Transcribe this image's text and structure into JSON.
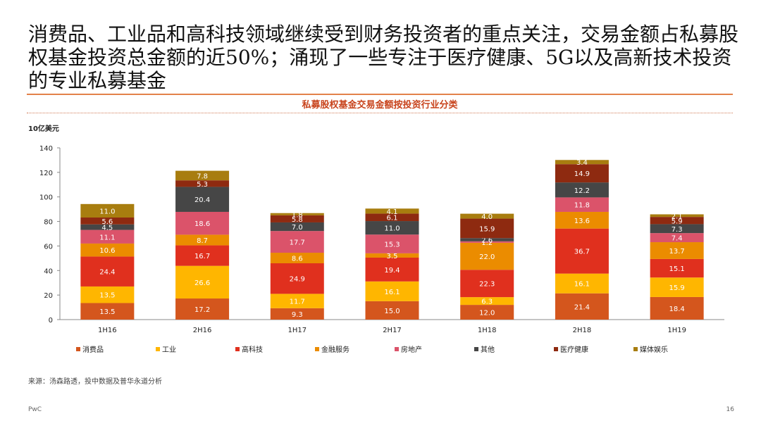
{
  "headline": "消费品、工业品和高科技领域继续受到财务投资者的重点关注，交易金额占私募股权基金投资总金额的近50%；涌现了一些专注于医疗健康、5G以及高新技术投资的专业私募基金",
  "source": "来源：汤森路透，投中数据及普华永道分析",
  "footer": {
    "brand": "PwC",
    "page": "16"
  },
  "chart_data": {
    "type": "bar",
    "stacked": true,
    "title": "私募股权基金交易金额按投资行业分类",
    "ylabel": "10亿美元",
    "ylim": [
      0,
      140
    ],
    "yticks": [
      0,
      20,
      40,
      60,
      80,
      100,
      120,
      140
    ],
    "grid": false,
    "legend_position": "bottom",
    "categories": [
      "1H16",
      "2H16",
      "1H17",
      "2H17",
      "1H18",
      "2H18",
      "1H19"
    ],
    "series": [
      {
        "name": "消费品",
        "color": "#d4561d",
        "values": [
          13.5,
          17.2,
          9.3,
          15.0,
          12.0,
          21.4,
          18.4
        ]
      },
      {
        "name": "工业",
        "color": "#ffb600",
        "values": [
          13.5,
          26.6,
          11.7,
          16.1,
          6.3,
          16.1,
          15.9
        ]
      },
      {
        "name": "高科技",
        "color": "#e0301e",
        "values": [
          24.4,
          16.7,
          24.9,
          19.4,
          22.3,
          36.7,
          15.1
        ]
      },
      {
        "name": "金融服务",
        "color": "#eb8c00",
        "values": [
          10.6,
          8.7,
          8.6,
          3.5,
          22.0,
          13.6,
          13.7
        ]
      },
      {
        "name": "房地产",
        "color": "#db536a",
        "values": [
          11.1,
          18.6,
          17.7,
          15.3,
          1.2,
          11.8,
          7.4
        ]
      },
      {
        "name": "其他",
        "color": "#464646",
        "values": [
          4.5,
          20.4,
          7.0,
          11.0,
          2.6,
          12.2,
          7.3
        ]
      },
      {
        "name": "医疗健康",
        "color": "#8e2a10",
        "values": [
          5.6,
          5.3,
          5.8,
          6.1,
          15.9,
          14.9,
          5.9
        ]
      },
      {
        "name": "媒体娱乐",
        "color": "#a87d0f",
        "values": [
          11.0,
          7.8,
          1.8,
          4.1,
          4.0,
          3.4,
          2.1
        ]
      }
    ]
  }
}
